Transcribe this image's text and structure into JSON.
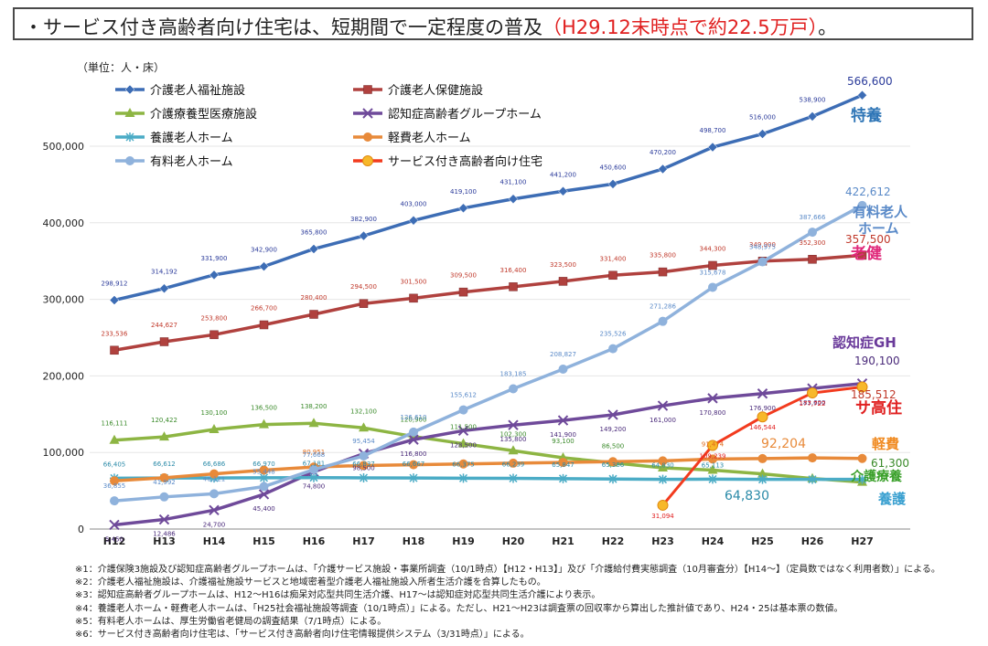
{
  "title": {
    "prefix": "・サービス付き高齢者向け住宅は、短期間で一定程度の普及",
    "highlight": "（H29.12末時点で約22.5万戸）",
    "suffix": "。"
  },
  "chart_data": {
    "type": "line",
    "unit_label": "（単位：人・床）",
    "categories": [
      "H12",
      "H13",
      "H14",
      "H15",
      "H16",
      "H17",
      "H18",
      "H19",
      "H20",
      "H21",
      "H22",
      "H23",
      "H24",
      "H25",
      "H26",
      "H27"
    ],
    "yticks": [
      0,
      100000,
      200000,
      300000,
      400000,
      500000
    ],
    "ytick_labels": [
      "0",
      "100,000",
      "200,000",
      "300,000",
      "400,000",
      "500,000"
    ],
    "ylim": [
      0,
      580000
    ],
    "series": [
      {
        "name": "介護老人福祉施設",
        "color": "#3d6db5",
        "marker": "diamond",
        "values": [
          298912,
          314192,
          331900,
          342900,
          365800,
          382900,
          403000,
          419100,
          431100,
          441200,
          450600,
          470200,
          498700,
          516000,
          538900,
          566600
        ],
        "value_labels": [
          "298,912",
          "314,192",
          "331,900",
          "342,900",
          "365,800",
          "382,900",
          "403,000",
          "419,100",
          "431,100",
          "441,200",
          "450,600",
          "470,200",
          "498,700",
          "516,000",
          "538,900",
          "566,600"
        ],
        "label_color": "#2a3a9a",
        "end_label": "特養",
        "end_label_color": "#2e75b6"
      },
      {
        "name": "介護老人保健施設",
        "color": "#b0413e",
        "marker": "square",
        "values": [
          233536,
          244627,
          253800,
          266700,
          280400,
          294500,
          301500,
          309500,
          316400,
          323500,
          331400,
          335800,
          344300,
          349900,
          352300,
          357500
        ],
        "value_labels": [
          "233,536",
          "244,627",
          "253,800",
          "266,700",
          "280,400",
          "294,500",
          "301,500",
          "309,500",
          "316,400",
          "323,500",
          "331,400",
          "335,800",
          "344,300",
          "349,900",
          "352,300",
          "357,500"
        ],
        "label_color": "#c0392b",
        "end_label": "老健",
        "end_label_color": "#e0287a"
      },
      {
        "name": "介護療養型医療施設",
        "color": "#8db543",
        "marker": "triangle",
        "values": [
          116111,
          120422,
          130100,
          136500,
          138200,
          132100,
          120900,
          111500,
          102300,
          93100,
          86500,
          80000,
          77000,
          72000,
          66000,
          61300
        ],
        "value_labels": [
          "116,111",
          "120,422",
          "130,100",
          "136,500",
          "138,200",
          "132,100",
          "120,900",
          "111,500",
          "102,300",
          "93,100",
          "86,500",
          "",
          "",
          "",
          "",
          ""
        ],
        "label_color": "#3a8a2a",
        "end_label": "介護療養",
        "end_label_color": "#3aa02a"
      },
      {
        "name": "認知症高齢者グループホーム",
        "color": "#6f4a9a",
        "marker": "x",
        "values": [
          5450,
          12486,
          24700,
          45400,
          74800,
          98500,
          116800,
          128500,
          135800,
          141900,
          149200,
          161000,
          170800,
          176900,
          183600,
          190100
        ],
        "value_labels": [
          "5,450",
          "12,486",
          "24,700",
          "45,400",
          "74,800",
          "98,500",
          "116,800",
          "128,500",
          "135,800",
          "141,900",
          "149,200",
          "161,000",
          "170,800",
          "176,900",
          "183,600",
          "190,100"
        ],
        "label_color": "#4a2a7a",
        "end_label": "認知症GH",
        "end_label_color": "#6a3a9a"
      },
      {
        "name": "養護老人ホーム",
        "color": "#4bacc6",
        "marker": "star",
        "values": [
          66405,
          66612,
          66686,
          66970,
          67181,
          66837,
          66667,
          66375,
          66239,
          65847,
          65386,
          64830,
          65113,
          64830,
          64830,
          64830
        ],
        "value_labels": [
          "66,405",
          "66,612",
          "66,686",
          "66,970",
          "67,181",
          "66,837",
          "66,667",
          "66,375",
          "66,239",
          "65,847",
          "65,386",
          "64,830",
          "65,113",
          "",
          "",
          ""
        ],
        "label_color": "#2a8aa8",
        "end_label": "養護",
        "end_label_color": "#3aa0d0"
      },
      {
        "name": "軽費老人ホーム",
        "color": "#e88a3a",
        "marker": "circle",
        "values": [
          63000,
          67000,
          72000,
          77000,
          80951,
          83000,
          84000,
          85000,
          86000,
          87000,
          88000,
          89000,
          91474,
          92000,
          93000,
          92204
        ],
        "value_labels": [
          "",
          "",
          "",
          "",
          "80,951",
          "",
          "",
          "",
          "",
          "",
          "",
          "",
          "91,474",
          "",
          "",
          "92,204"
        ],
        "label_color": "#e06a1a",
        "end_label": "軽費",
        "end_label_color": "#f08a20"
      },
      {
        "name": "有料老人ホーム",
        "color": "#8fb2dc",
        "marker": "circle",
        "values": [
          36855,
          41992,
          46121,
          55448,
          77668,
          95454,
          126610,
          155612,
          183185,
          208827,
          235526,
          271286,
          315678,
          348975,
          387666,
          422612
        ],
        "value_labels": [
          "36,855",
          "41,992",
          "46,121",
          "55,448",
          "77,668",
          "95,454",
          "126,610",
          "155,612",
          "183,185",
          "208,827",
          "235,526",
          "271,286",
          "315,678",
          "348,975",
          "387,666",
          "422,612"
        ],
        "label_color": "#5a8ac8",
        "end_label": "有料老人ホーム",
        "end_label_color": "#5a8ac8"
      },
      {
        "name": "サービス付き高齢者向け住宅",
        "color": "#f23b1e",
        "marker": "orange-dot",
        "values": [
          null,
          null,
          null,
          null,
          null,
          null,
          null,
          null,
          null,
          null,
          null,
          31094,
          109239,
          146544,
          177722,
          185512
        ],
        "value_labels": [
          "",
          "",
          "",
          "",
          "",
          "",
          "",
          "",
          "",
          "",
          "",
          "31,094",
          "109,239",
          "146,544",
          "177,722",
          "185,512"
        ],
        "label_color": "#e02020",
        "end_label": "サ高住",
        "end_label_color": "#e02020"
      }
    ],
    "end_values": {
      "特養": "566,600",
      "有料": "422,612",
      "老健": "357,500",
      "認知症GH": "190,100",
      "サ高住": "185,512",
      "軽費": "92,204",
      "介護療養": "61,300",
      "養護": "64,830"
    }
  },
  "footnotes": [
    "※1：介護保険3施設及び認知症高齢者グループホームは、「介護サービス施設・事業所調査（10/1時点）【H12・H13】」及び「介護給付費実態調査（10月審査分）【H14〜】（定員数ではなく利用者数）」による。",
    "※2：介護老人福祉施設は、介護福祉施設サービスと地域密着型介護老人福祉施設入所者生活介護を合算したもの。",
    "※3：認知症高齢者グループホームは、H12〜H16は痴呆対応型共同生活介護、H17〜は認知症対応型共同生活介護により表示。",
    "※4：養護老人ホーム・軽費老人ホームは、「H25社会福祉施設等調査（10/1時点）」による。ただし、H21〜H23は調査票の回収率から算出した推計値であり、H24・25は基本票の数値。",
    "※5：有料老人ホームは、厚生労働省老健局の調査結果（7/1時点）による。",
    "※6：サービス付き高齢者向け住宅は、「サービス付き高齢者向け住宅情報提供システム（3/31時点）」による。"
  ]
}
